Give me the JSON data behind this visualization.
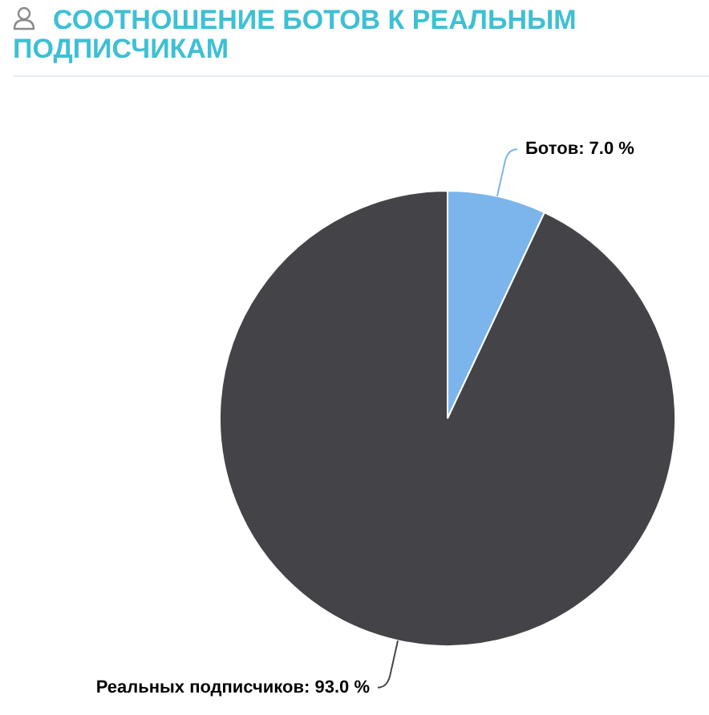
{
  "chart_data": {
    "type": "pie",
    "title": "СООТНОШЕНИЕ БОТОВ К РЕАЛЬНЫМ ПОДПИСЧИКАМ",
    "categories": [
      "Ботов",
      "Реальных подписчиков"
    ],
    "values": [
      7.0,
      93.0
    ],
    "colors": [
      "#7cb5ec",
      "#434348"
    ],
    "value_labels": [
      "7.0 %",
      "93.0 %"
    ]
  }
}
